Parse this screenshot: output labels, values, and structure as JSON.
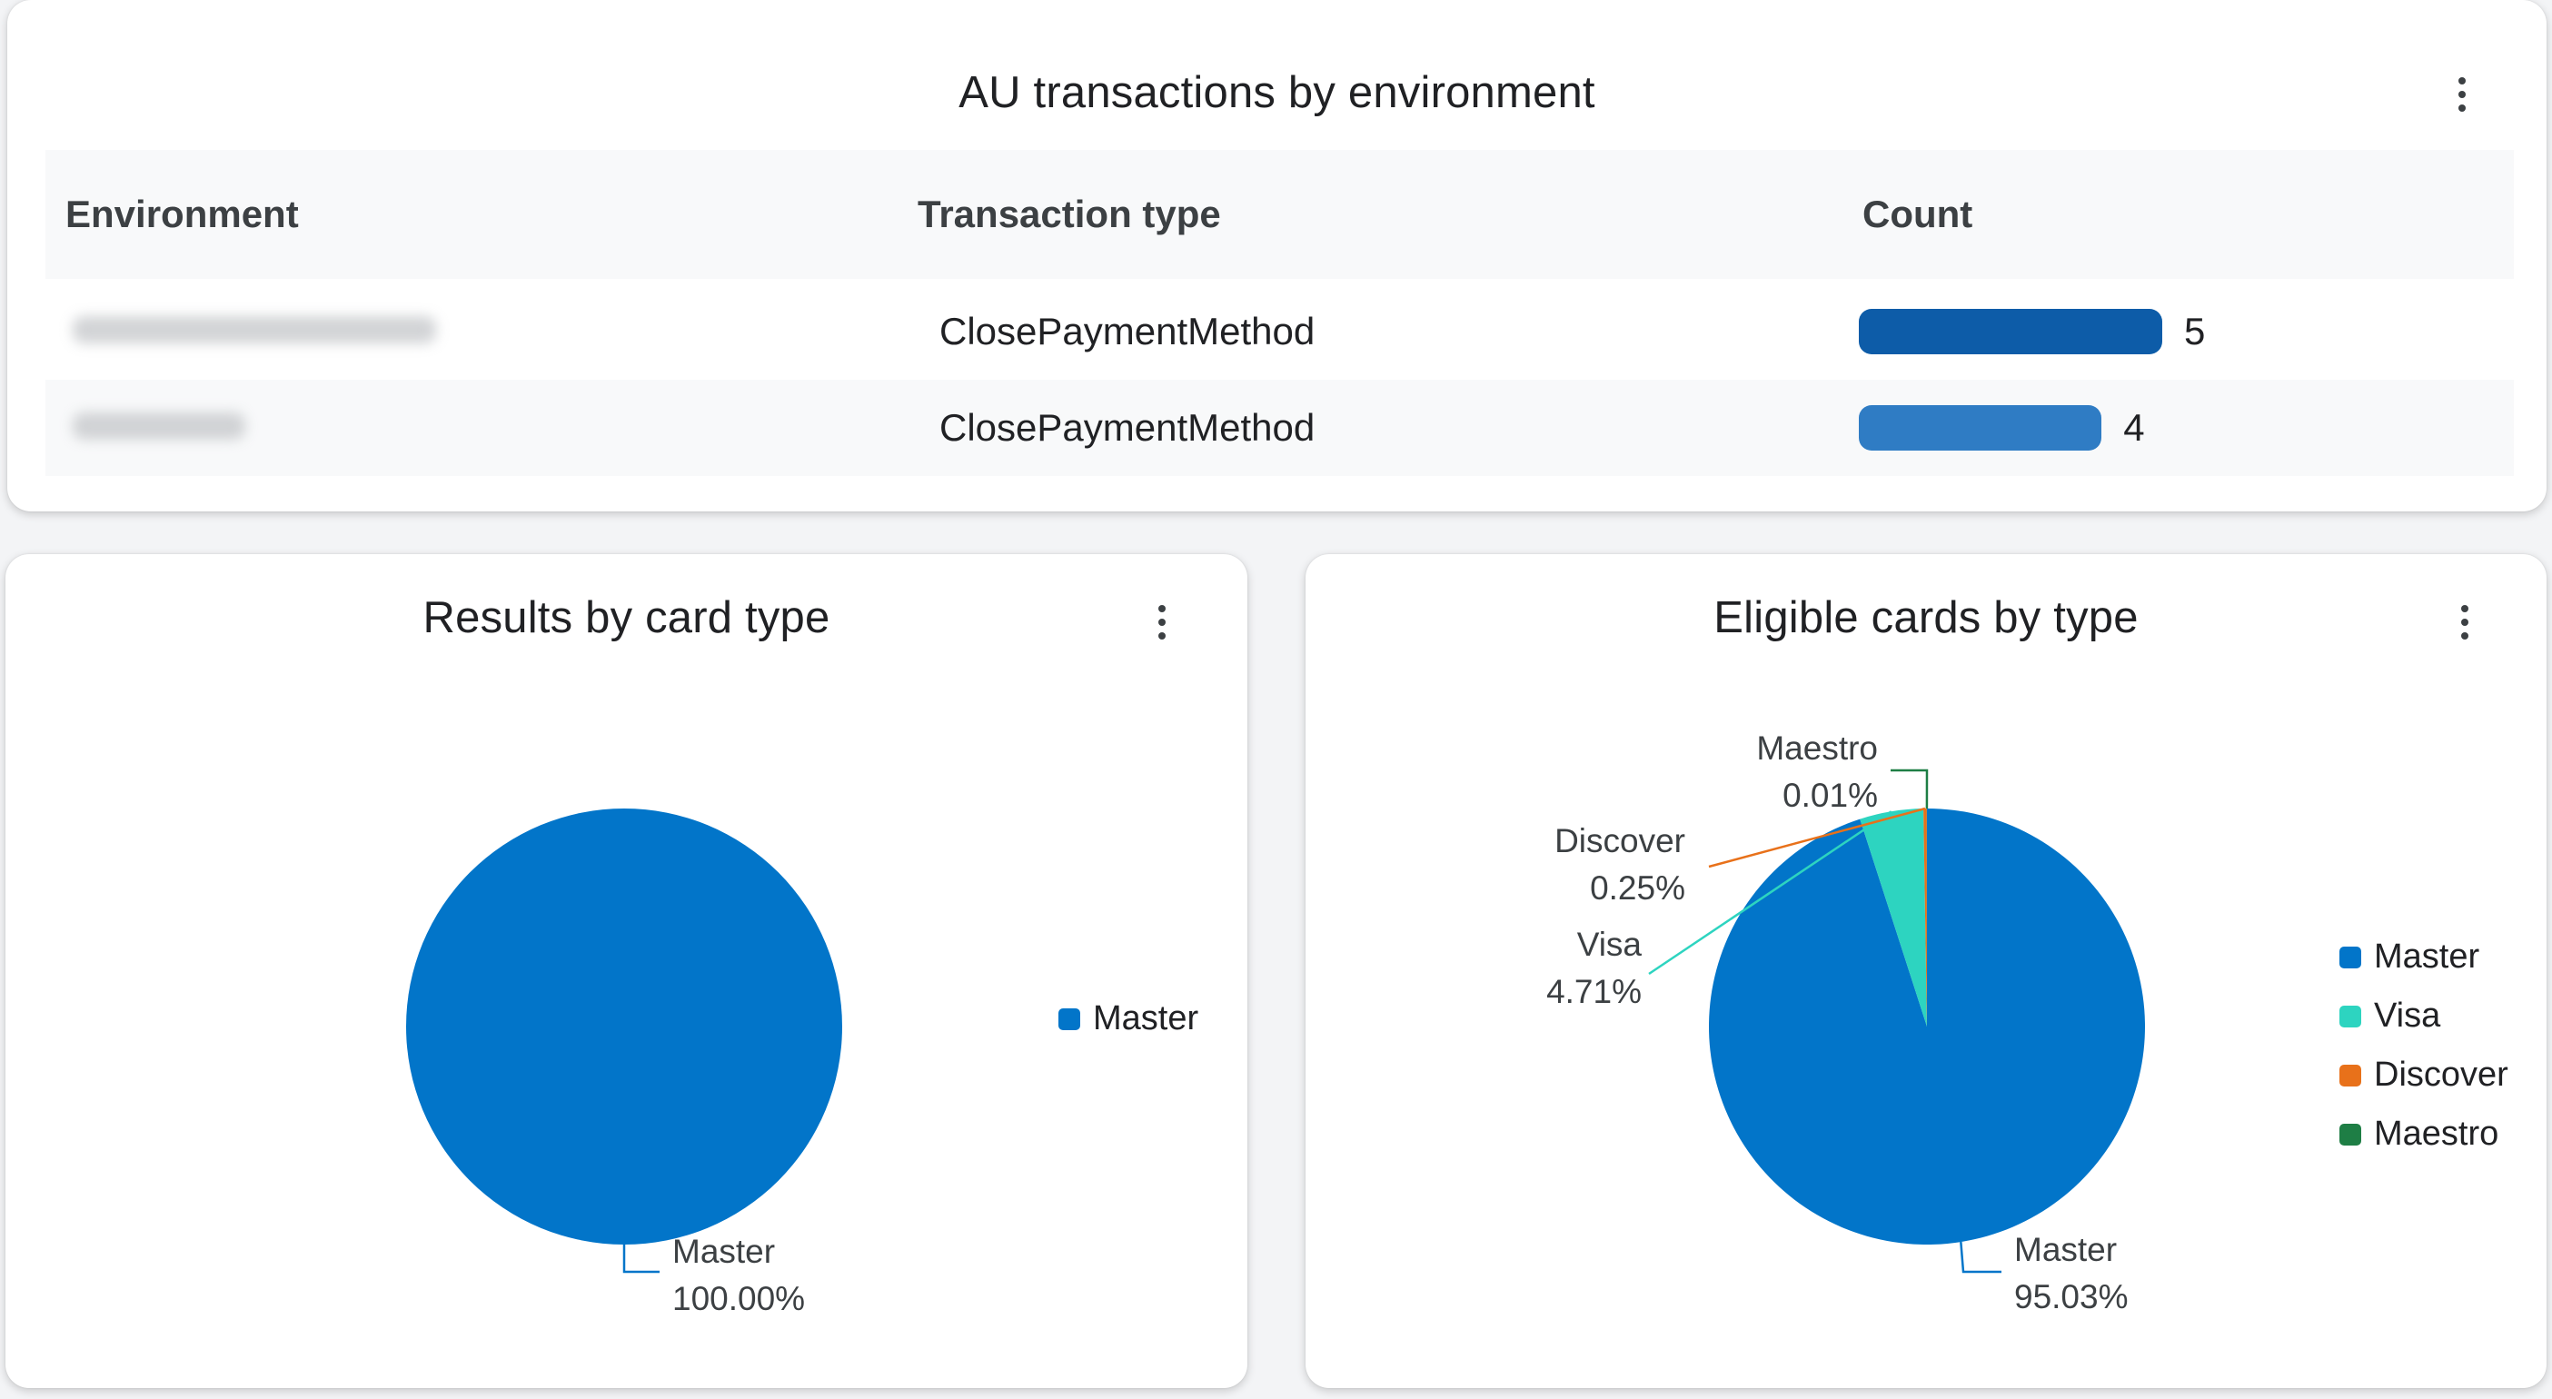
{
  "table_card": {
    "title": "AU transactions by environment",
    "menu_icon": "more-vert-icon",
    "columns": [
      "Environment",
      "Transaction type",
      "Count"
    ],
    "rows": [
      {
        "transaction_type": "ClosePaymentMethod",
        "count": 5
      },
      {
        "transaction_type": "ClosePaymentMethod",
        "count": 4
      }
    ],
    "bar_colors": [
      "#0d5ca8",
      "#2f7cc4"
    ],
    "count_scale_max": 5
  },
  "results_card": {
    "title": "Results by card type",
    "menu_icon": "more-vert-icon",
    "chart_data": {
      "type": "pie",
      "title": "Results by card type",
      "categories": [
        "Master"
      ],
      "values": [
        100.0
      ],
      "labels": [
        [
          "Master",
          "100.00%"
        ]
      ],
      "colors": [
        "#0275c9"
      ],
      "legend": {
        "position": "right",
        "entries": [
          "Master"
        ]
      }
    }
  },
  "eligible_card": {
    "title": "Eligible cards by type",
    "menu_icon": "more-vert-icon",
    "chart_data": {
      "type": "pie",
      "title": "Eligible cards by type",
      "categories": [
        "Master",
        "Visa",
        "Discover",
        "Maestro"
      ],
      "values": [
        95.03,
        4.71,
        0.25,
        0.01
      ],
      "labels": [
        [
          "Master",
          "95.03%"
        ],
        [
          "Visa",
          "4.71%"
        ],
        [
          "Discover",
          "0.25%"
        ],
        [
          "Maestro",
          "0.01%"
        ]
      ],
      "colors": [
        "#0275c9",
        "#2dd4c0",
        "#e8711a",
        "#1e7e45"
      ],
      "legend": {
        "position": "right",
        "entries": [
          "Master",
          "Visa",
          "Discover",
          "Maestro"
        ]
      }
    }
  }
}
